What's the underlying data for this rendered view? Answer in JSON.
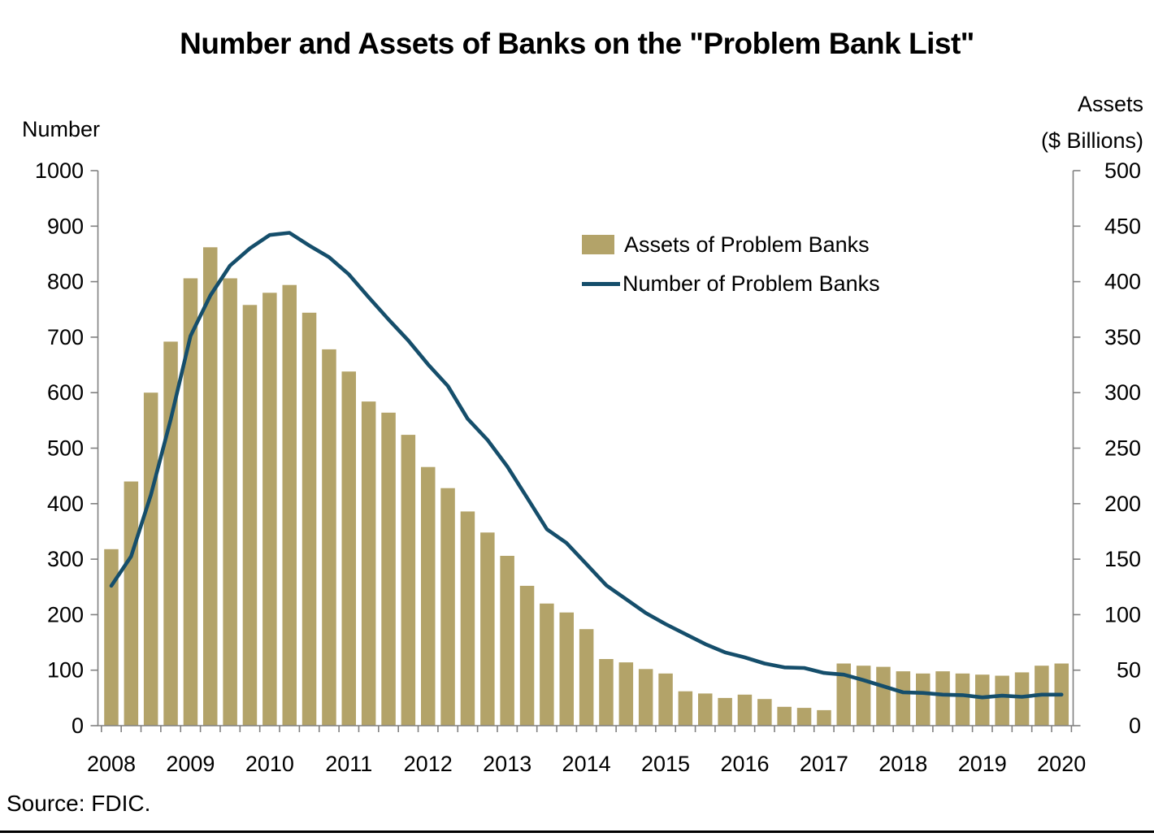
{
  "title": "Number and Assets of Banks on the \"Problem Bank List\"",
  "source": "Source: FDIC.",
  "legend": {
    "bar_label": "Assets of Problem Banks",
    "line_label": "Number of Problem Banks"
  },
  "left_axis": {
    "label": "Number",
    "min": 0,
    "max": 1000,
    "ticks": [
      1000,
      900,
      800,
      700,
      600,
      500,
      400,
      300,
      200,
      100,
      0
    ]
  },
  "right_axis": {
    "label_line1": "Assets",
    "label_line2": "($ Billions)",
    "min": 0,
    "max": 500,
    "ticks": [
      500,
      450,
      400,
      350,
      300,
      250,
      200,
      150,
      100,
      50,
      0
    ]
  },
  "colors": {
    "bar": "#b3a369",
    "line": "#154e6b",
    "axis": "#808080",
    "text": "#000000",
    "rule": "#000000"
  },
  "chart_data": {
    "type": "bar+line",
    "title": "Number and Assets of Banks on the \"Problem Bank List\"",
    "grid": false,
    "legend_position": "upper middle-right",
    "left_ylim": [
      0,
      1000
    ],
    "right_ylim": [
      0,
      500
    ],
    "x_tick_labels": [
      "2008",
      "2009",
      "2010",
      "2011",
      "2012",
      "2013",
      "2014",
      "2015",
      "2016",
      "2017",
      "2018",
      "2019",
      "2020"
    ],
    "categories": [
      "2008 Q4",
      "2009 Q1",
      "2009 Q2",
      "2009 Q3",
      "2009 Q4",
      "2010 Q1",
      "2010 Q2",
      "2010 Q3",
      "2010 Q4",
      "2011 Q1",
      "2011 Q2",
      "2011 Q3",
      "2011 Q4",
      "2012 Q1",
      "2012 Q2",
      "2012 Q3",
      "2012 Q4",
      "2013 Q1",
      "2013 Q2",
      "2013 Q3",
      "2013 Q4",
      "2014 Q1",
      "2014 Q2",
      "2014 Q3",
      "2014 Q4",
      "2015 Q1",
      "2015 Q2",
      "2015 Q3",
      "2015 Q4",
      "2016 Q1",
      "2016 Q2",
      "2016 Q3",
      "2016 Q4",
      "2017 Q1",
      "2017 Q2",
      "2017 Q3",
      "2017 Q4",
      "2018 Q1",
      "2018 Q2",
      "2018 Q3",
      "2018 Q4",
      "2019 Q1",
      "2019 Q2",
      "2019 Q3",
      "2019 Q4",
      "2020 Q1",
      "2020 Q2",
      "2020 Q3",
      "2020 Q4"
    ],
    "series": [
      {
        "name": "Assets of Problem Banks",
        "type": "bar",
        "axis": "right",
        "unit": "$ billions",
        "values": [
          159,
          220,
          300,
          346,
          403,
          431,
          403,
          379,
          390,
          397,
          372,
          339,
          319,
          292,
          282,
          262,
          233,
          214,
          193,
          174,
          153,
          126,
          110,
          102,
          87,
          60,
          57,
          51,
          47,
          31,
          29,
          25,
          28,
          24,
          17,
          16,
          14,
          56,
          54,
          53,
          49,
          47,
          49,
          47,
          46,
          45,
          48,
          54,
          56
        ]
      },
      {
        "name": "Number of Problem Banks",
        "type": "line",
        "axis": "left",
        "unit": "banks",
        "values": [
          252,
          305,
          416,
          552,
          702,
          775,
          829,
          860,
          884,
          888,
          865,
          844,
          813,
          772,
          732,
          694,
          651,
          612,
          553,
          515,
          467,
          411,
          354,
          329,
          291,
          253,
          228,
          203,
          183,
          165,
          147,
          132,
          123,
          112,
          105,
          104,
          95,
          92,
          82,
          71,
          60,
          59,
          56,
          55,
          51,
          54,
          52,
          56,
          56
        ]
      }
    ]
  }
}
